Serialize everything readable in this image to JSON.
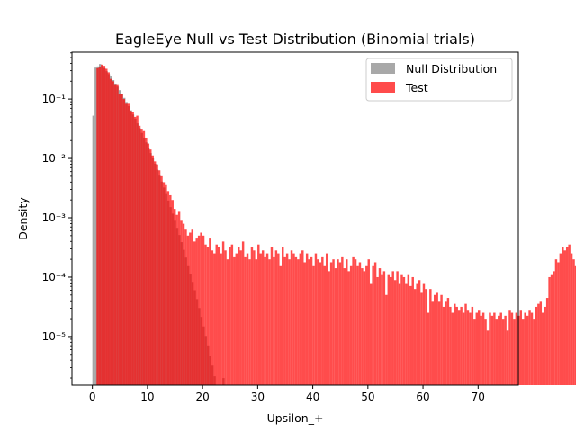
{
  "chart_data": {
    "type": "bar",
    "title": "EagleEye Null vs Test Distribution (Binomial trials)",
    "xlabel": "Upsilon_+",
    "ylabel": "Density",
    "xlim": [
      -3.7,
      77.3
    ],
    "ylim_log10": [
      -5.82,
      -0.21
    ],
    "yscale": "log",
    "grid": false,
    "legend_position": "top-right",
    "x_ticks": [
      {
        "value": 0,
        "label": "0"
      },
      {
        "value": 10,
        "label": "10"
      },
      {
        "value": 20,
        "label": "20"
      },
      {
        "value": 30,
        "label": "30"
      },
      {
        "value": 40,
        "label": "40"
      },
      {
        "value": 50,
        "label": "50"
      },
      {
        "value": 60,
        "label": "60"
      },
      {
        "value": 70,
        "label": "70"
      }
    ],
    "y_ticks": [
      {
        "exp": -5,
        "label": "10⁻⁵"
      },
      {
        "exp": -4,
        "label": "10⁻⁴"
      },
      {
        "exp": -3,
        "label": "10⁻³"
      },
      {
        "exp": -2,
        "label": "10⁻²"
      },
      {
        "exp": -1,
        "label": "10⁻¹"
      }
    ],
    "series": [
      {
        "name": "Null Distribution",
        "color": "#808080",
        "opacity": 0.7,
        "bin_start": 0.0,
        "bin_width": 0.4,
        "log10_density": [
          -1.28,
          -0.47,
          -0.45,
          -0.41,
          -0.44,
          -0.48,
          -0.53,
          -0.58,
          -0.62,
          -0.68,
          -0.74,
          -0.79,
          -0.85,
          -0.92,
          -0.98,
          -1.05,
          -1.12,
          -1.19,
          -1.26,
          -1.33,
          -1.41,
          -1.49,
          -1.57,
          -1.65,
          -1.73,
          -1.82,
          -1.91,
          -2.0,
          -2.09,
          -2.19,
          -2.29,
          -2.39,
          -2.49,
          -2.6,
          -2.71,
          -2.82,
          -2.93,
          -3.05,
          -3.17,
          -3.29,
          -3.41,
          -3.54,
          -3.67,
          -3.8,
          -3.94,
          -4.08,
          -4.22,
          -4.37,
          -4.52,
          -4.67,
          -4.83,
          -4.99,
          -5.15,
          -5.32,
          -5.49,
          -5.67,
          null,
          -5.85,
          null,
          -5.7,
          null,
          null,
          -6.0,
          null,
          -5.95,
          null,
          null,
          null,
          null,
          null
        ]
      },
      {
        "name": "Test",
        "color": "#ff0000",
        "opacity": 0.7,
        "bin_start": 0.75,
        "bin_width": 0.4,
        "log10_density": [
          -0.48,
          -0.46,
          -0.42,
          -0.44,
          -0.49,
          -0.55,
          -0.66,
          -0.7,
          -0.75,
          -0.75,
          -0.92,
          -0.92,
          -1.0,
          -1.08,
          -1.08,
          -1.2,
          -1.22,
          -1.3,
          -1.28,
          -1.45,
          -1.5,
          -1.54,
          -1.65,
          -1.75,
          -1.85,
          -1.95,
          -2.05,
          -2.1,
          -2.2,
          -2.3,
          -2.4,
          -2.45,
          -2.55,
          -2.62,
          -2.7,
          -2.85,
          -2.95,
          -2.9,
          -3.05,
          -3.1,
          -3.2,
          -3.3,
          -3.25,
          -3.2,
          -3.4,
          -3.35,
          -3.3,
          -3.25,
          -3.3,
          -3.45,
          -3.5,
          -3.35,
          -3.55,
          -3.6,
          -3.45,
          -3.5,
          -3.6,
          -3.4,
          -3.55,
          -3.7,
          -3.5,
          -3.45,
          -3.65,
          -3.6,
          -3.5,
          -3.55,
          -3.4,
          -3.65,
          -3.6,
          -3.7,
          -3.5,
          -3.55,
          -3.7,
          -3.45,
          -3.6,
          -3.55,
          -3.65,
          -3.6,
          -3.7,
          -3.5,
          -3.65,
          -3.55,
          -3.6,
          -3.8,
          -3.5,
          -3.65,
          -3.6,
          -3.7,
          -3.55,
          -3.6,
          -3.65,
          -3.7,
          -3.6,
          -3.55,
          -3.75,
          -3.6,
          -3.7,
          -3.65,
          -3.8,
          -3.6,
          -3.7,
          -3.75,
          -3.65,
          -3.8,
          -3.6,
          -3.9,
          -3.75,
          -3.7,
          -3.85,
          -3.7,
          -3.75,
          -3.65,
          -3.85,
          -3.7,
          -3.9,
          -3.8,
          -3.65,
          -3.7,
          -3.8,
          -3.75,
          -3.85,
          -3.9,
          -3.8,
          -3.7,
          -4.1,
          -3.8,
          -3.75,
          -4.0,
          -3.85,
          -3.95,
          -3.9,
          -4.3,
          -3.95,
          -4.0,
          -3.9,
          -4.05,
          -3.9,
          -4.1,
          -3.95,
          -4.0,
          -4.1,
          -3.95,
          -4.15,
          -4.0,
          -4.2,
          -4.1,
          -4.05,
          -4.25,
          -4.1,
          -4.2,
          -4.6,
          -4.2,
          -4.4,
          -4.3,
          -4.25,
          -4.4,
          -4.3,
          -4.5,
          -4.4,
          -4.35,
          -4.5,
          -4.6,
          -4.45,
          -4.5,
          -4.55,
          -4.5,
          -4.6,
          -4.45,
          -4.55,
          -4.6,
          -4.5,
          -4.7,
          -4.6,
          -4.55,
          -4.65,
          -4.6,
          -4.7,
          -4.9,
          -4.6,
          -4.65,
          -4.6,
          -4.7,
          -4.65,
          -4.6,
          -4.7,
          -4.65,
          -4.9,
          -4.55,
          -4.6,
          -4.7,
          -4.6,
          -4.65,
          -4.55,
          -4.7,
          -4.6,
          -4.65,
          -4.55,
          -4.6,
          -4.7,
          -4.5,
          -4.45,
          -4.4,
          -4.6,
          -4.5,
          -4.35,
          -4.0,
          -3.95,
          -3.9,
          -3.7,
          -3.75,
          -3.6,
          -3.5,
          -3.55,
          -3.5,
          -3.45,
          -3.6,
          -3.7,
          -3.8,
          -4.2,
          -4.6,
          -4.7
        ]
      }
    ]
  }
}
